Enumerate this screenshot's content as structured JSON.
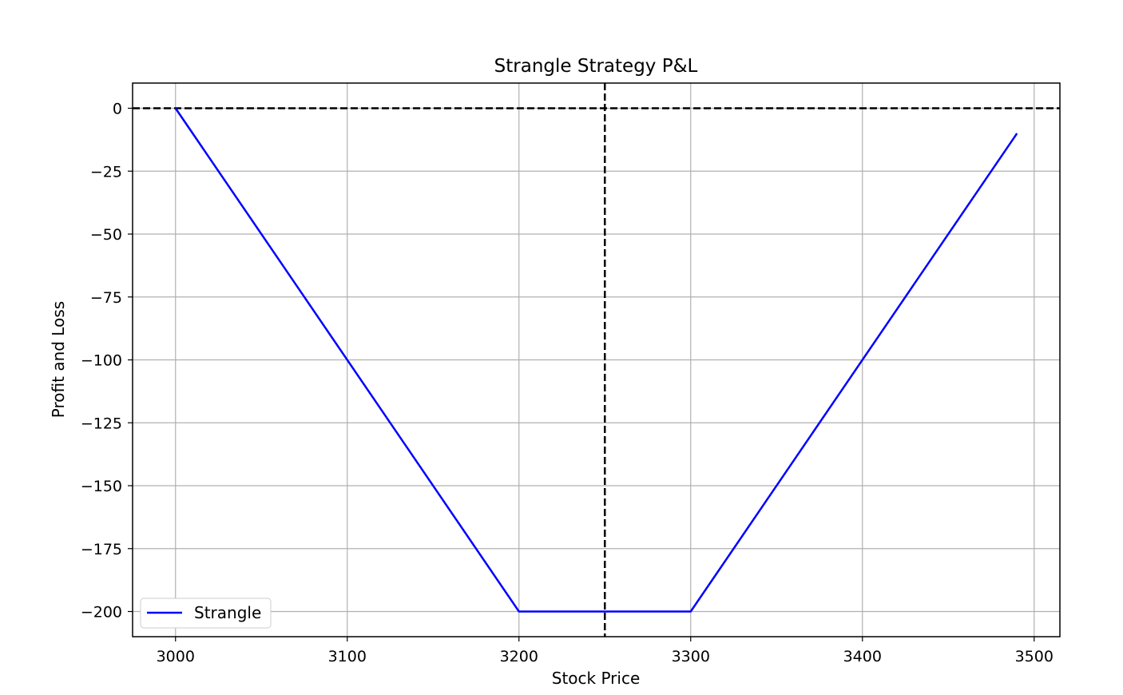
{
  "chart_data": {
    "type": "line",
    "title": "Strangle Strategy P&L",
    "xlabel": "Stock Price",
    "ylabel": "Profit and Loss",
    "xlim": [
      2975,
      3515
    ],
    "ylim": [
      -210,
      10
    ],
    "xticks": [
      3000,
      3100,
      3200,
      3300,
      3400,
      3500
    ],
    "yticks": [
      0,
      -25,
      -50,
      -75,
      -100,
      -125,
      -150,
      -175,
      -200
    ],
    "ytick_labels": [
      "0",
      "−25",
      "−50",
      "−75",
      "−100",
      "−125",
      "−150",
      "−175",
      "−200"
    ],
    "grid": true,
    "legend_position": "lower-left",
    "series": [
      {
        "name": "Strangle",
        "color": "#0000ff",
        "x": [
          3000,
          3200,
          3300,
          3490
        ],
        "y": [
          0,
          -200,
          -200,
          -10
        ]
      }
    ],
    "reference_lines": [
      {
        "orientation": "horizontal",
        "value": 0,
        "style": "dashed",
        "color": "#000000"
      },
      {
        "orientation": "vertical",
        "value": 3250,
        "style": "dashed",
        "color": "#000000"
      }
    ]
  }
}
